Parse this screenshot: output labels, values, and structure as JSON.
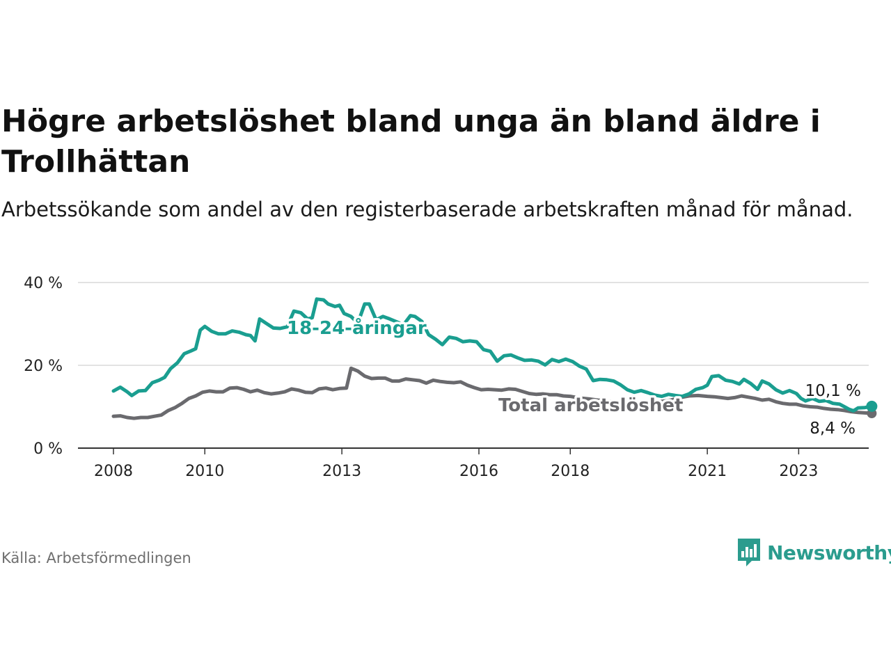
{
  "title": "Högre arbetslöshet bland unga än bland äldre i Trollhättan",
  "subtitle": "Arbetssökande som andel av den registerbaserade arbetskraften månad för månad.",
  "source": "Källa: Arbetsförmedlingen",
  "brand": "Newsworthy",
  "colors": {
    "youth": "#1a9e90",
    "total": "#6a6a6e",
    "brand": "#2b9c8e"
  },
  "chart_data": {
    "type": "line",
    "ylim": [
      0,
      40
    ],
    "xlim": [
      2007.7,
      2024.75
    ],
    "yticks": [
      {
        "value": 0,
        "label": "0 %"
      },
      {
        "value": 20,
        "label": "20 %"
      },
      {
        "value": 40,
        "label": "40 %"
      }
    ],
    "xticks": [
      {
        "value": 2008,
        "label": "2008"
      },
      {
        "value": 2010,
        "label": "2010"
      },
      {
        "value": 2013,
        "label": "2013"
      },
      {
        "value": 2016,
        "label": "2016"
      },
      {
        "value": 2018,
        "label": "2018"
      },
      {
        "value": 2021,
        "label": "2021"
      },
      {
        "value": 2023,
        "label": "2023"
      }
    ],
    "grid": true,
    "series": [
      {
        "name": "18-24-åringar",
        "label": "18-24-åringar",
        "end_label": "10,1 %",
        "color": "#1a9e90",
        "points": [
          [
            2008.0,
            13.8
          ],
          [
            2008.15,
            14.7
          ],
          [
            2008.3,
            13.6
          ],
          [
            2008.4,
            12.7
          ],
          [
            2008.55,
            13.8
          ],
          [
            2008.7,
            13.9
          ],
          [
            2008.85,
            15.8
          ],
          [
            2009.0,
            16.4
          ],
          [
            2009.12,
            17.1
          ],
          [
            2009.25,
            19.2
          ],
          [
            2009.4,
            20.6
          ],
          [
            2009.55,
            22.8
          ],
          [
            2009.7,
            23.5
          ],
          [
            2009.8,
            24.0
          ],
          [
            2009.9,
            28.5
          ],
          [
            2010.0,
            29.4
          ],
          [
            2010.15,
            28.2
          ],
          [
            2010.3,
            27.6
          ],
          [
            2010.45,
            27.6
          ],
          [
            2010.6,
            28.3
          ],
          [
            2010.75,
            28.0
          ],
          [
            2010.9,
            27.4
          ],
          [
            2011.0,
            27.2
          ],
          [
            2011.1,
            25.9
          ],
          [
            2011.2,
            31.2
          ],
          [
            2011.35,
            30.1
          ],
          [
            2011.5,
            29.0
          ],
          [
            2011.65,
            28.9
          ],
          [
            2011.8,
            29.3
          ],
          [
            2011.95,
            33.1
          ],
          [
            2012.1,
            32.7
          ],
          [
            2012.25,
            31.2
          ],
          [
            2012.35,
            31.5
          ],
          [
            2012.45,
            36.0
          ],
          [
            2012.6,
            35.8
          ],
          [
            2012.7,
            34.8
          ],
          [
            2012.85,
            34.2
          ],
          [
            2012.95,
            34.5
          ],
          [
            2013.05,
            32.5
          ],
          [
            2013.2,
            31.8
          ],
          [
            2013.35,
            30.2
          ],
          [
            2013.5,
            34.8
          ],
          [
            2013.6,
            34.8
          ],
          [
            2013.75,
            31.0
          ],
          [
            2013.9,
            31.8
          ],
          [
            2014.05,
            31.2
          ],
          [
            2014.2,
            30.5
          ],
          [
            2014.35,
            29.8
          ],
          [
            2014.5,
            32.0
          ],
          [
            2014.6,
            31.8
          ],
          [
            2014.75,
            30.6
          ],
          [
            2014.9,
            27.4
          ],
          [
            2015.05,
            26.3
          ],
          [
            2015.2,
            25.0
          ],
          [
            2015.35,
            26.8
          ],
          [
            2015.5,
            26.5
          ],
          [
            2015.65,
            25.7
          ],
          [
            2015.8,
            25.9
          ],
          [
            2015.95,
            25.7
          ],
          [
            2016.1,
            23.8
          ],
          [
            2016.25,
            23.4
          ],
          [
            2016.4,
            21.0
          ],
          [
            2016.55,
            22.3
          ],
          [
            2016.7,
            22.5
          ],
          [
            2016.85,
            21.8
          ],
          [
            2017.0,
            21.2
          ],
          [
            2017.15,
            21.3
          ],
          [
            2017.3,
            21.0
          ],
          [
            2017.45,
            20.1
          ],
          [
            2017.6,
            21.4
          ],
          [
            2017.75,
            20.9
          ],
          [
            2017.9,
            21.5
          ],
          [
            2018.05,
            20.9
          ],
          [
            2018.2,
            19.8
          ],
          [
            2018.35,
            19.1
          ],
          [
            2018.5,
            16.3
          ],
          [
            2018.65,
            16.6
          ],
          [
            2018.8,
            16.5
          ],
          [
            2018.95,
            16.2
          ],
          [
            2019.1,
            15.3
          ],
          [
            2019.25,
            14.1
          ],
          [
            2019.4,
            13.5
          ],
          [
            2019.55,
            13.9
          ],
          [
            2019.7,
            13.4
          ],
          [
            2019.85,
            12.8
          ],
          [
            2020.0,
            12.5
          ],
          [
            2020.15,
            13.0
          ],
          [
            2020.3,
            12.7
          ],
          [
            2020.45,
            12.5
          ],
          [
            2020.6,
            13.1
          ],
          [
            2020.75,
            14.2
          ],
          [
            2020.9,
            14.6
          ],
          [
            2021.0,
            15.2
          ],
          [
            2021.1,
            17.3
          ],
          [
            2021.25,
            17.5
          ],
          [
            2021.4,
            16.4
          ],
          [
            2021.55,
            16.1
          ],
          [
            2021.7,
            15.5
          ],
          [
            2021.8,
            16.6
          ],
          [
            2021.95,
            15.6
          ],
          [
            2022.1,
            14.2
          ],
          [
            2022.2,
            16.2
          ],
          [
            2022.35,
            15.5
          ],
          [
            2022.5,
            14.1
          ],
          [
            2022.65,
            13.3
          ],
          [
            2022.8,
            13.9
          ],
          [
            2022.95,
            13.2
          ],
          [
            2023.05,
            12.0
          ],
          [
            2023.15,
            11.4
          ],
          [
            2023.3,
            12.0
          ],
          [
            2023.45,
            11.3
          ],
          [
            2023.6,
            11.5
          ],
          [
            2023.75,
            10.8
          ],
          [
            2023.9,
            10.6
          ],
          [
            2024.0,
            10.0
          ],
          [
            2024.1,
            9.4
          ],
          [
            2024.2,
            9.0
          ],
          [
            2024.3,
            9.7
          ],
          [
            2024.45,
            9.8
          ],
          [
            2024.6,
            10.1
          ]
        ]
      },
      {
        "name": "Total arbetslöshet",
        "label": "Total arbetslöshet",
        "end_label": "8,4 %",
        "color": "#6a6a6e",
        "points": [
          [
            2008.0,
            7.7
          ],
          [
            2008.15,
            7.8
          ],
          [
            2008.3,
            7.4
          ],
          [
            2008.45,
            7.2
          ],
          [
            2008.6,
            7.4
          ],
          [
            2008.75,
            7.4
          ],
          [
            2008.9,
            7.7
          ],
          [
            2009.05,
            8.0
          ],
          [
            2009.2,
            9.1
          ],
          [
            2009.35,
            9.8
          ],
          [
            2009.5,
            10.8
          ],
          [
            2009.65,
            12.0
          ],
          [
            2009.8,
            12.6
          ],
          [
            2009.95,
            13.5
          ],
          [
            2010.1,
            13.8
          ],
          [
            2010.25,
            13.6
          ],
          [
            2010.4,
            13.6
          ],
          [
            2010.55,
            14.5
          ],
          [
            2010.7,
            14.6
          ],
          [
            2010.85,
            14.2
          ],
          [
            2011.0,
            13.6
          ],
          [
            2011.15,
            14.0
          ],
          [
            2011.3,
            13.4
          ],
          [
            2011.45,
            13.1
          ],
          [
            2011.6,
            13.3
          ],
          [
            2011.75,
            13.6
          ],
          [
            2011.9,
            14.3
          ],
          [
            2012.05,
            14.0
          ],
          [
            2012.2,
            13.5
          ],
          [
            2012.35,
            13.4
          ],
          [
            2012.5,
            14.3
          ],
          [
            2012.65,
            14.5
          ],
          [
            2012.8,
            14.1
          ],
          [
            2012.95,
            14.4
          ],
          [
            2013.1,
            14.5
          ],
          [
            2013.2,
            19.3
          ],
          [
            2013.35,
            18.6
          ],
          [
            2013.5,
            17.4
          ],
          [
            2013.65,
            16.8
          ],
          [
            2013.8,
            16.9
          ],
          [
            2013.95,
            16.9
          ],
          [
            2014.1,
            16.2
          ],
          [
            2014.25,
            16.2
          ],
          [
            2014.4,
            16.7
          ],
          [
            2014.55,
            16.5
          ],
          [
            2014.7,
            16.3
          ],
          [
            2014.85,
            15.7
          ],
          [
            2015.0,
            16.4
          ],
          [
            2015.15,
            16.1
          ],
          [
            2015.3,
            15.9
          ],
          [
            2015.45,
            15.8
          ],
          [
            2015.6,
            16.0
          ],
          [
            2015.75,
            15.2
          ],
          [
            2015.9,
            14.6
          ],
          [
            2016.05,
            14.1
          ],
          [
            2016.2,
            14.2
          ],
          [
            2016.35,
            14.1
          ],
          [
            2016.5,
            14.0
          ],
          [
            2016.65,
            14.3
          ],
          [
            2016.8,
            14.2
          ],
          [
            2016.95,
            13.7
          ],
          [
            2017.1,
            13.2
          ],
          [
            2017.25,
            13.0
          ],
          [
            2017.4,
            13.1
          ],
          [
            2017.55,
            12.9
          ],
          [
            2017.7,
            12.9
          ],
          [
            2017.85,
            12.6
          ],
          [
            2018.0,
            12.5
          ],
          [
            2018.2,
            12.1
          ],
          [
            2018.4,
            11.9
          ],
          [
            2018.6,
            11.6
          ],
          [
            2018.8,
            11.4
          ],
          [
            2019.0,
            11.2
          ],
          [
            2019.2,
            11.1
          ],
          [
            2019.4,
            11.0
          ],
          [
            2019.6,
            11.0
          ],
          [
            2019.8,
            11.1
          ],
          [
            2020.0,
            11.3
          ],
          [
            2020.2,
            11.6
          ],
          [
            2020.4,
            12.2
          ],
          [
            2020.6,
            12.6
          ],
          [
            2020.8,
            12.7
          ],
          [
            2021.0,
            12.5
          ],
          [
            2021.15,
            12.4
          ],
          [
            2021.3,
            12.2
          ],
          [
            2021.45,
            12.0
          ],
          [
            2021.6,
            12.2
          ],
          [
            2021.75,
            12.6
          ],
          [
            2021.9,
            12.3
          ],
          [
            2022.05,
            12.0
          ],
          [
            2022.2,
            11.6
          ],
          [
            2022.35,
            11.8
          ],
          [
            2022.5,
            11.2
          ],
          [
            2022.65,
            10.8
          ],
          [
            2022.8,
            10.6
          ],
          [
            2022.95,
            10.6
          ],
          [
            2023.1,
            10.2
          ],
          [
            2023.25,
            10.0
          ],
          [
            2023.4,
            9.9
          ],
          [
            2023.55,
            9.6
          ],
          [
            2023.7,
            9.4
          ],
          [
            2023.85,
            9.3
          ],
          [
            2024.0,
            9.1
          ],
          [
            2024.15,
            8.8
          ],
          [
            2024.3,
            8.6
          ],
          [
            2024.45,
            8.5
          ],
          [
            2024.6,
            8.4
          ]
        ]
      }
    ]
  }
}
